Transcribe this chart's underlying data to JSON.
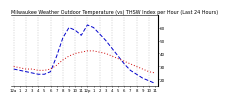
{
  "title": "Milwaukee Weather Outdoor Temperature (vs) THSW Index per Hour (Last 24 Hours)",
  "title_fontsize": 3.5,
  "bg_color": "#ffffff",
  "plot_bg_color": "#ffffff",
  "grid_color": "#888888",
  "x_hours": [
    0,
    1,
    2,
    3,
    4,
    5,
    6,
    7,
    8,
    9,
    10,
    11,
    12,
    13,
    14,
    15,
    16,
    17,
    18,
    19,
    20,
    21,
    22,
    23
  ],
  "temp_values": [
    30,
    29,
    28,
    28,
    27,
    27,
    28,
    31,
    35,
    38,
    40,
    41,
    42,
    42,
    41,
    40,
    38,
    36,
    34,
    32,
    30,
    28,
    26,
    25
  ],
  "thsw_values": [
    28,
    27,
    26,
    25,
    24,
    24,
    26,
    38,
    52,
    60,
    58,
    54,
    62,
    60,
    55,
    50,
    44,
    38,
    32,
    27,
    24,
    21,
    19,
    17
  ],
  "temp_color": "#cc0000",
  "thsw_color": "#0000cc",
  "temp_linewidth": 0.7,
  "thsw_linewidth": 0.7,
  "ylabel_fontsize": 3.0,
  "xlabel_fontsize": 2.8,
  "yticks": [
    20,
    30,
    40,
    50,
    60
  ],
  "ylim": [
    15,
    70
  ],
  "xlim": [
    -0.5,
    23.5
  ],
  "x_tick_labels": [
    "12a",
    "1",
    "2",
    "3",
    "4",
    "5",
    "6",
    "7",
    "8",
    "9",
    "10",
    "11",
    "12p",
    "1",
    "2",
    "3",
    "4",
    "5",
    "6",
    "7",
    "8",
    "9",
    "10",
    "11"
  ]
}
